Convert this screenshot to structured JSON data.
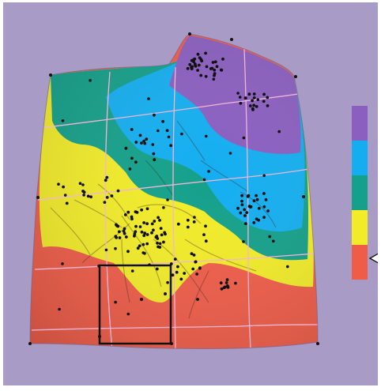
{
  "legend": {
    "bands": [
      {
        "name": "purple",
        "color": "#8a5fc0"
      },
      {
        "name": "blue",
        "color": "#14aef0"
      },
      {
        "name": "green",
        "color": "#14a08a"
      },
      {
        "name": "yellow",
        "color": "#f2ec28"
      },
      {
        "name": "red",
        "color": "#ef5c48"
      }
    ],
    "pointer_band": "red"
  },
  "colors": {
    "background": "#a89cc6",
    "grid_lines": "#f3b5d6",
    "points": "#111111",
    "selection_box": "#111111"
  },
  "icons": {
    "pointer": "triangle-pointer-icon"
  }
}
